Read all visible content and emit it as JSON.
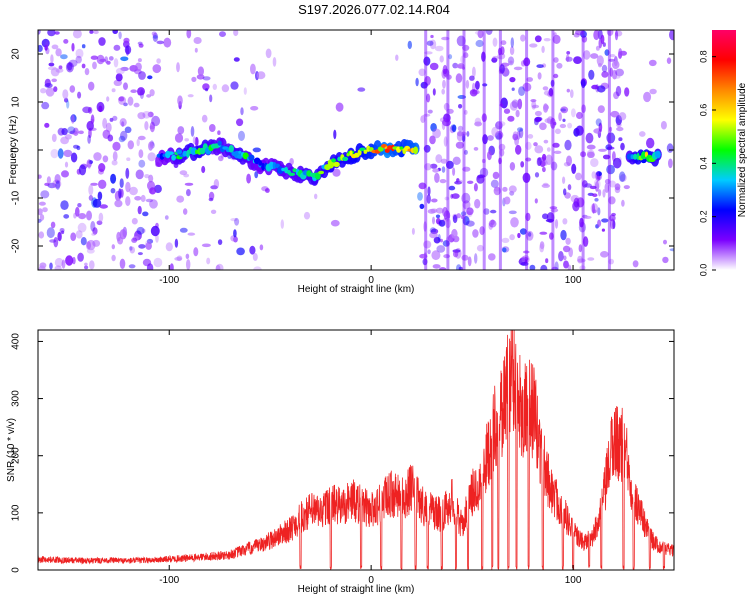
{
  "chart_data": [
    {
      "type": "heatmap",
      "title": "S197.2026.077.02.14.R04",
      "xlabel": "Height of straight line (km)",
      "ylabel": "Frequency (Hz)",
      "xlim": [
        -165,
        150
      ],
      "ylim": [
        -25,
        25
      ],
      "xticks": [
        -100,
        0,
        100
      ],
      "yticks": [
        -20,
        -10,
        0,
        10,
        20
      ],
      "colorbar": {
        "label": "Normalized spectral amplitude",
        "range": [
          0.0,
          0.9
        ],
        "ticks": [
          0.0,
          0.2,
          0.4,
          0.6,
          0.8
        ],
        "tick_labels": [
          "0.0",
          "0.2",
          "0.4",
          "0.6",
          "0.8"
        ],
        "colors": [
          "#ffffff",
          "#7b00ff",
          "#0000ff",
          "#00ccff",
          "#00ff00",
          "#ffff00",
          "#ff8800",
          "#ff0000",
          "#ff0066"
        ]
      },
      "signal_track": [
        {
          "x": -105,
          "f": -1.5,
          "amp": 0.3
        },
        {
          "x": -95,
          "f": -1.0,
          "amp": 0.45
        },
        {
          "x": -85,
          "f": 0.0,
          "amp": 0.55
        },
        {
          "x": -75,
          "f": 1.0,
          "amp": 0.4
        },
        {
          "x": -65,
          "f": -1.0,
          "amp": 0.5
        },
        {
          "x": -55,
          "f": -3.0,
          "amp": 0.35
        },
        {
          "x": -45,
          "f": -4.0,
          "amp": 0.4
        },
        {
          "x": -35,
          "f": -5.0,
          "amp": 0.45
        },
        {
          "x": -28,
          "f": -5.5,
          "amp": 0.5
        },
        {
          "x": -20,
          "f": -3.0,
          "amp": 0.55
        },
        {
          "x": -10,
          "f": -1.0,
          "amp": 0.6
        },
        {
          "x": 0,
          "f": 0.0,
          "amp": 0.7
        },
        {
          "x": 8,
          "f": 0.3,
          "amp": 0.85
        },
        {
          "x": 15,
          "f": 0.3,
          "amp": 0.7
        },
        {
          "x": 22,
          "f": 0.3,
          "amp": 0.8
        },
        {
          "x": 128,
          "f": -1.5,
          "amp": 0.45
        },
        {
          "x": 135,
          "f": -1.5,
          "amp": 0.65
        },
        {
          "x": 142,
          "f": -1.5,
          "amp": 0.5
        }
      ]
    },
    {
      "type": "line",
      "xlabel": "Height of straight line (km)",
      "ylabel": "SNR (10 * v/v)",
      "xlim": [
        -165,
        150
      ],
      "ylim": [
        0,
        420
      ],
      "xticks": [
        -100,
        0,
        100
      ],
      "yticks": [
        0,
        100,
        200,
        300,
        400
      ],
      "color": "#ee2222",
      "series": [
        {
          "name": "SNR",
          "x": [
            -165,
            -150,
            -140,
            -130,
            -120,
            -110,
            -100,
            -90,
            -80,
            -70,
            -60,
            -55,
            -50,
            -45,
            -40,
            -35,
            -30,
            -25,
            -20,
            -15,
            -10,
            -5,
            0,
            5,
            10,
            15,
            20,
            25,
            30,
            35,
            40,
            45,
            50,
            55,
            60,
            65,
            70,
            75,
            80,
            85,
            90,
            95,
            100,
            105,
            110,
            115,
            120,
            125,
            130,
            135,
            140,
            145,
            150
          ],
          "y": [
            20,
            18,
            17,
            18,
            17,
            18,
            20,
            22,
            25,
            28,
            40,
            45,
            55,
            65,
            75,
            95,
            110,
            105,
            125,
            115,
            130,
            120,
            110,
            125,
            140,
            130,
            150,
            120,
            110,
            100,
            130,
            80,
            140,
            170,
            250,
            300,
            380,
            290,
            300,
            200,
            140,
            110,
            70,
            50,
            60,
            130,
            240,
            230,
            140,
            90,
            50,
            40,
            35
          ]
        }
      ]
    }
  ]
}
